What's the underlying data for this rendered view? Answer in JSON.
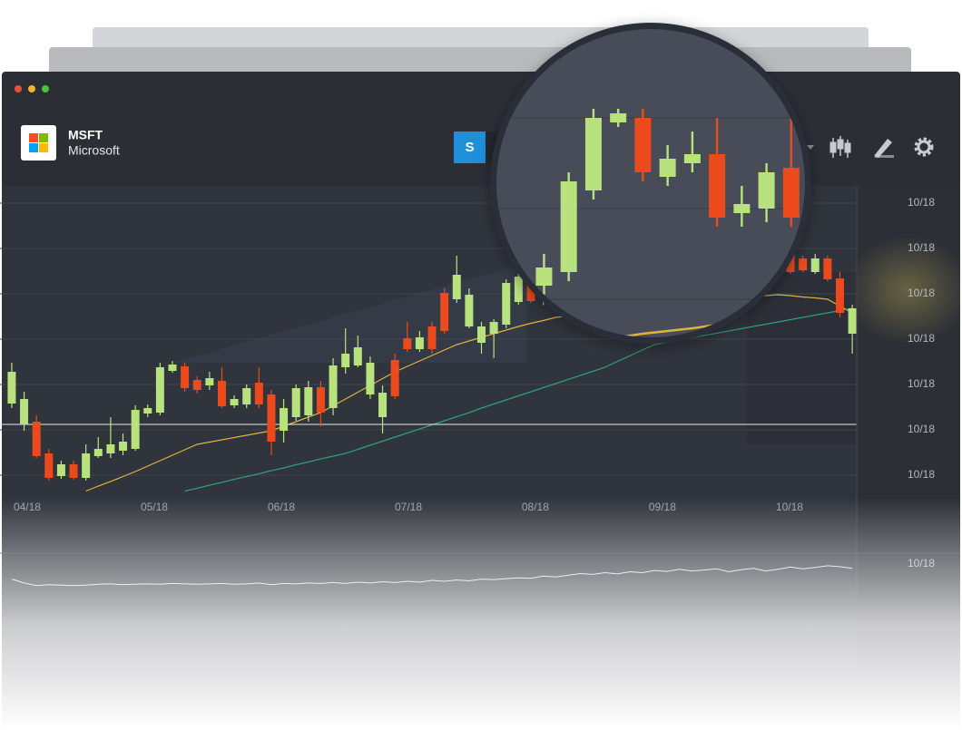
{
  "header": {
    "symbol": "MSFT",
    "name": "Microsoft",
    "button": "S"
  },
  "chart_data": [
    {
      "type": "candlestick",
      "up_color": "#b8e27e",
      "down_color": "#ec4a1c",
      "xlim": [
        -0.95,
        68.36
      ],
      "ylim": [
        6.2,
        73.8
      ],
      "xticks": [
        {
          "value": 1.25,
          "label": "04/18"
        },
        {
          "value": 11.53,
          "label": "05/18"
        },
        {
          "value": 21.81,
          "label": "06/18"
        },
        {
          "value": 32.09,
          "label": "07/18"
        },
        {
          "value": 42.36,
          "label": "08/18"
        },
        {
          "value": 52.64,
          "label": "09/18"
        },
        {
          "value": 62.92,
          "label": "10/18"
        }
      ],
      "yticks": [
        {
          "value": 70,
          "label": "10/18"
        },
        {
          "value": 60,
          "label": "10/18"
        },
        {
          "value": 50,
          "label": "10/18"
        },
        {
          "value": 40,
          "label": "10/18"
        },
        {
          "value": 30,
          "label": "10/18"
        },
        {
          "value": 20,
          "label": "10/18"
        },
        {
          "value": 10,
          "label": "10/18"
        }
      ],
      "grid": true,
      "reference_line": 21.2,
      "open": [
        25.8,
        21.2,
        21.8,
        14.8,
        9.8,
        12.4,
        9.4,
        14.2,
        14.8,
        15.4,
        15.8,
        23.6,
        23.8,
        33.0,
        34.0,
        31.0,
        29.8,
        30.8,
        25.4,
        25.6,
        30.4,
        27.8,
        19.8,
        22.8,
        23.2,
        29.4,
        24.8,
        33.8,
        34.2,
        27.8,
        22.8,
        35.4,
        40.2,
        37.8,
        42.8,
        50.2,
        48.8,
        42.8,
        39.2,
        41.2,
        43.2,
        48.2,
        54.8,
        49.0,
        51.5,
        53.0,
        62.0,
        69.5,
        70.0,
        63.5,
        65.0,
        66.0,
        59.5,
        60.0,
        64.5,
        60.0,
        56.0,
        58.5,
        55.5,
        57.0,
        60.0,
        57.0,
        59.5,
        58.8,
        57.8,
        54.8,
        57.8,
        53.4,
        41.2
      ],
      "high": [
        34.8,
        28.4,
        23.2,
        15.8,
        13.2,
        13.2,
        16.8,
        18.4,
        22.8,
        19.2,
        25.4,
        25.6,
        34.8,
        35.2,
        34.8,
        31.8,
        32.8,
        33.8,
        27.6,
        30.0,
        33.8,
        28.8,
        26.8,
        30.0,
        30.8,
        30.8,
        35.8,
        42.4,
        40.8,
        36.2,
        29.8,
        36.8,
        43.8,
        41.8,
        43.8,
        51.2,
        58.4,
        51.2,
        43.8,
        44.4,
        53.2,
        54.8,
        56.8,
        53.0,
        55.0,
        64.0,
        71.0,
        71.0,
        71.0,
        67.0,
        68.5,
        70.0,
        62.5,
        65.0,
        70.0,
        61.0,
        60.0,
        59.5,
        59.0,
        61.0,
        61.5,
        60.5,
        60.0,
        59.8,
        58.4,
        58.8,
        58.4,
        54.8,
        47.6
      ],
      "low": [
        24.8,
        19.8,
        13.8,
        8.8,
        9.2,
        9.0,
        8.8,
        13.8,
        13.8,
        14.4,
        15.4,
        22.8,
        23.2,
        32.6,
        28.4,
        28.0,
        28.8,
        24.8,
        24.8,
        24.8,
        24.8,
        14.4,
        17.2,
        22.0,
        21.8,
        20.8,
        23.2,
        32.4,
        33.8,
        26.8,
        19.2,
        26.8,
        37.2,
        37.2,
        36.8,
        41.2,
        48.0,
        42.4,
        36.8,
        35.8,
        42.4,
        47.6,
        48.0,
        47.5,
        50.5,
        52.0,
        61.0,
        69.0,
        63.0,
        62.5,
        64.0,
        58.0,
        58.0,
        58.5,
        58.0,
        55.0,
        55.0,
        54.0,
        54.5,
        56.0,
        56.0,
        56.5,
        56.0,
        54.4,
        54.8,
        54.4,
        52.8,
        44.8,
        36.8
      ],
      "close": [
        32.8,
        26.8,
        14.2,
        9.4,
        12.4,
        9.4,
        14.8,
        15.8,
        16.8,
        17.4,
        24.4,
        24.8,
        33.8,
        34.4,
        29.2,
        28.8,
        31.4,
        25.2,
        26.8,
        29.2,
        25.6,
        17.4,
        24.8,
        29.2,
        29.4,
        23.8,
        34.2,
        36.8,
        38.2,
        34.8,
        28.2,
        27.4,
        37.8,
        40.4,
        37.8,
        41.8,
        54.2,
        49.8,
        42.8,
        43.8,
        52.4,
        53.8,
        48.4,
        52.0,
        53.5,
        63.0,
        70.0,
        70.5,
        64.0,
        65.5,
        66.0,
        59.0,
        60.5,
        64.0,
        59.0,
        56.0,
        58.5,
        55.0,
        57.5,
        60.0,
        57.0,
        59.0,
        57.0,
        54.8,
        55.2,
        57.8,
        53.2,
        45.8,
        46.8
      ],
      "series": [
        {
          "color": "#e0b43c",
          "values": [
            null,
            null,
            null,
            null,
            null,
            null,
            6.5,
            7.6,
            8.6,
            9.7,
            10.8,
            12.0,
            13.2,
            14.4,
            15.6,
            16.8,
            17.3,
            17.8,
            18.3,
            18.8,
            19.3,
            19.8,
            20.8,
            21.8,
            22.8,
            23.8,
            25.3,
            26.8,
            28.3,
            29.8,
            31.3,
            32.8,
            34.0,
            35.2,
            36.4,
            37.6,
            38.8,
            39.6,
            40.4,
            41.2,
            42.0,
            42.8,
            43.5,
            44.1,
            44.8,
            45.1,
            45.5,
            45.8,
            46.2,
            46.5,
            46.8,
            47.2,
            47.5,
            47.7,
            48.0,
            48.2,
            48.4,
            48.6,
            48.9,
            49.1,
            49.3,
            49.6,
            49.8,
            49.6,
            49.3,
            49.1,
            48.8,
            47.3,
            45.8
          ]
        },
        {
          "color": "#2f9e7e",
          "values": [
            null,
            null,
            null,
            null,
            null,
            null,
            null,
            null,
            null,
            null,
            null,
            null,
            null,
            null,
            6.5,
            7.1,
            7.8,
            8.4,
            9.1,
            9.7,
            10.3,
            11.0,
            11.6,
            12.3,
            12.9,
            13.6,
            14.2,
            14.8,
            15.7,
            16.6,
            17.5,
            18.4,
            19.3,
            20.2,
            21.1,
            22.0,
            22.9,
            23.8,
            24.8,
            25.7,
            26.6,
            27.5,
            28.4,
            29.3,
            30.2,
            31.1,
            32.0,
            32.9,
            33.8,
            35.1,
            36.3,
            37.6,
            38.8,
            39.3,
            39.8,
            40.3,
            40.8,
            41.3,
            41.8,
            42.3,
            42.8,
            43.3,
            43.8,
            44.3,
            44.8,
            45.3,
            45.8,
            46.3,
            46.8
          ]
        }
      ]
    },
    {
      "type": "line",
      "color": "#d8dbe0",
      "xlim": [
        -0.95,
        68.36
      ],
      "ylim": [
        0,
        10
      ],
      "yticks": [
        {
          "value": 8,
          "label": "10/18"
        }
      ],
      "values": [
        4.5,
        3.6,
        3.0,
        3.2,
        3.1,
        3.0,
        3.1,
        3.3,
        3.4,
        3.2,
        3.3,
        3.4,
        3.3,
        3.5,
        3.4,
        3.3,
        3.4,
        3.5,
        3.3,
        3.4,
        3.6,
        3.2,
        3.5,
        3.4,
        3.6,
        3.5,
        3.7,
        3.5,
        3.8,
        3.6,
        3.9,
        3.7,
        4.0,
        3.8,
        4.2,
        4.0,
        4.3,
        4.1,
        4.5,
        4.4,
        4.6,
        4.8,
        4.7,
        5.2,
        5.0,
        5.4,
        5.8,
        5.6,
        6.0,
        5.7,
        6.2,
        6.0,
        6.5,
        6.3,
        6.8,
        6.4,
        6.6,
        6.9,
        6.2,
        6.7,
        7.0,
        6.4,
        6.8,
        7.3,
        6.9,
        7.2,
        7.6,
        7.4,
        7.0
      ]
    }
  ]
}
